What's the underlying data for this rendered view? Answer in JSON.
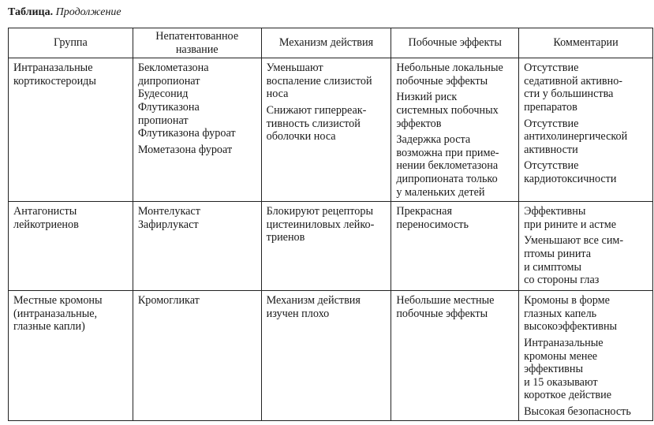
{
  "caption": {
    "label": "Таблица.",
    "subtitle": "Продолжение"
  },
  "headers": [
    "Группа",
    "Непатентованное\nназвание",
    "Механизм действия",
    "Побочные эффекты",
    "Комментарии"
  ],
  "rows": [
    [
      [
        "Интраназальные\nкортикостероиды"
      ],
      [
        "Беклометазона\nдипропионат\nБудесонид\nФлутиказона\nпропионат\nФлутиказона фуроат",
        "Мометазона фуроат"
      ],
      [
        "Уменьшают\nвоспаление слизистой\nноса",
        "Снижают гиперреак-\nтивность слизистой\nоболочки носа"
      ],
      [
        "Небольные локальные\nпобочные эффекты",
        "Низкий риск\nсистемных побочных\nэффектов",
        "Задержка роста\nвозможна при приме-\nнении беклометазона\nдипропионата только\nу маленьких детей"
      ],
      [
        "Отсутствие\nседативной активно-\nсти у большинства\nпрепаратов",
        "Отсутствие\nантихолинергической\nактивности",
        "Отсутствие\nкардиотоксичности"
      ]
    ],
    [
      [
        "Антагонисты\nлейкотриенов"
      ],
      [
        "Монтелукаст\nЗафирлукаст"
      ],
      [
        "Блокируют рецепторы\nцистеиниловых лейко-\nтриенов"
      ],
      [
        "Прекрасная\nпереносимость"
      ],
      [
        "Эффективны\nпри рините и астме",
        "Уменьшают все сим-\nптомы ринита\nи симптомы\nсо стороны глаз"
      ]
    ],
    [
      [
        "Местные кромоны\n(интраназальные,\nглазные капли)"
      ],
      [
        "Кромогликат"
      ],
      [
        "Механизм действия\nизучен плохо"
      ],
      [
        "Небольшие местные\nпобочные эффекты"
      ],
      [
        "Кромоны в форме\nглазных капель\nвысокоэффективны",
        "Интраназальные\nкромоны менее\nэффективны\nи 15 оказывают\nкороткое действие",
        "Высокая безопасность"
      ]
    ]
  ]
}
